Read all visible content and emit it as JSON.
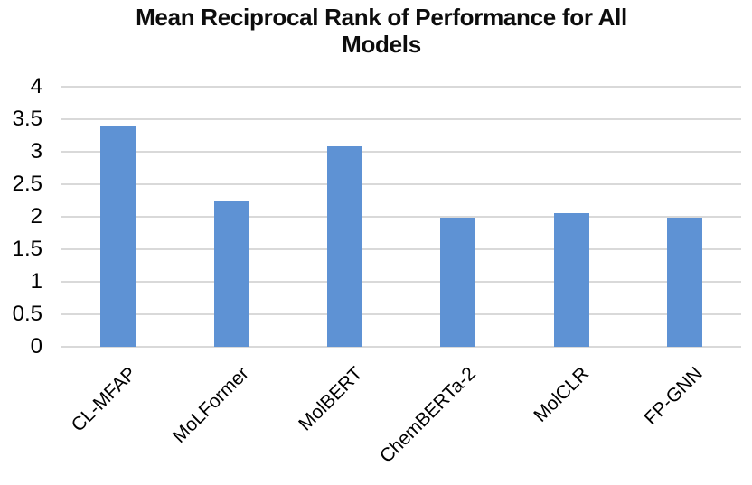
{
  "chart_data": {
    "type": "bar",
    "title": "Mean Reciprocal Rank of Performance for All Models",
    "title_lines": [
      "Mean Reciprocal Rank of Performance for All",
      "Models"
    ],
    "categories": [
      "CL-MFAP",
      "MoLFormer",
      "MolBERT",
      "ChemBERTa-2",
      "MolCLR",
      "FP-GNN"
    ],
    "values": [
      3.4,
      2.23,
      3.08,
      1.98,
      2.05,
      1.98
    ],
    "xlabel": "",
    "ylabel": "",
    "ylim": [
      0,
      4
    ],
    "yticks": [
      0,
      0.5,
      1,
      1.5,
      2,
      2.5,
      3,
      3.5,
      4
    ],
    "grid": true,
    "legend": false,
    "x_label_rotation_deg": 45,
    "bar_color": "#5E92D4",
    "gridline_color": "#D9D9D9",
    "title_color": "#0d0d0d",
    "tick_label_color": "#000000",
    "background_color": "#ffffff"
  }
}
